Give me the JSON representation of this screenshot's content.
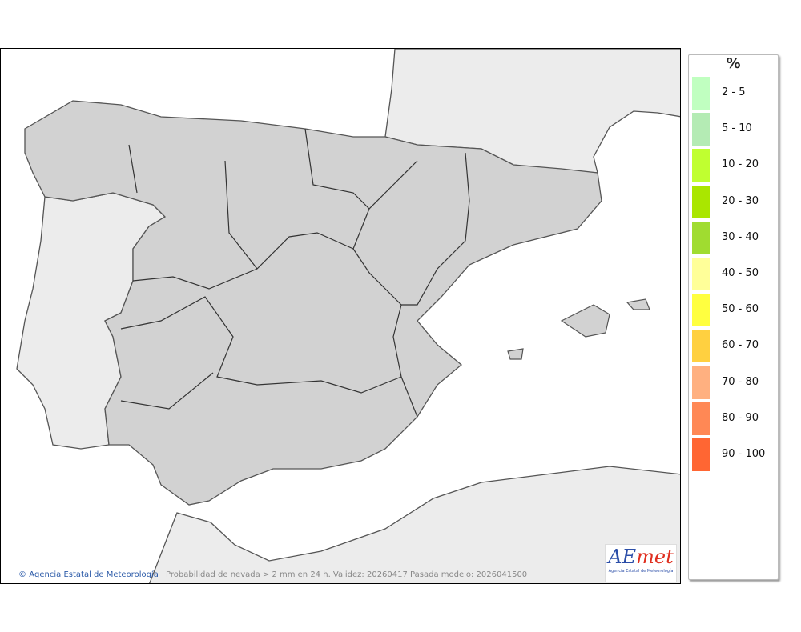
{
  "map": {
    "credit": "Agencia Estatal de Meteorología",
    "caption": "Probabilidad de nevada > 2 mm en 24 h. Validez: 20260417 Pasada modelo: 2026041500",
    "logo": {
      "text": "AEmet",
      "subtitle": "Agencia Estatal de Meteorología"
    }
  },
  "legend": {
    "unit": "%",
    "items": [
      {
        "label": "2 - 5",
        "color": "#c0ffc0"
      },
      {
        "label": "5 - 10",
        "color": "#b4ebb4"
      },
      {
        "label": "10 - 20",
        "color": "#c0ff30"
      },
      {
        "label": "20 - 30",
        "color": "#aae600"
      },
      {
        "label": "30 - 40",
        "color": "#a0dc30"
      },
      {
        "label": "40 - 50",
        "color": "#ffff99"
      },
      {
        "label": "50 - 60",
        "color": "#ffff40"
      },
      {
        "label": "60 - 70",
        "color": "#ffd040"
      },
      {
        "label": "70 - 80",
        "color": "#ffb080"
      },
      {
        "label": "80 - 90",
        "color": "#ff8855"
      },
      {
        "label": "90 - 100",
        "color": "#ff6633"
      }
    ]
  }
}
